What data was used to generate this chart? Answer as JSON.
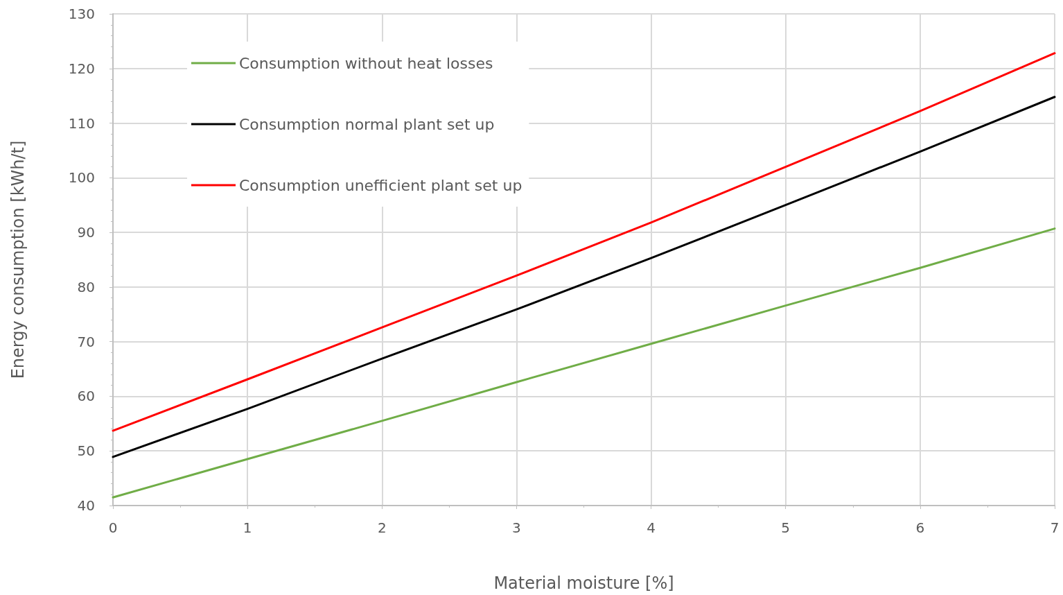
{
  "chart_data": {
    "type": "line",
    "xlabel": "Material moisture [%]",
    "ylabel": "Energy consumption [kWh/t]",
    "x": [
      0,
      1,
      2,
      3,
      4,
      5,
      6,
      7
    ],
    "series": [
      {
        "name": "Consumption without heat losses",
        "color": "#70ad47",
        "values": [
          41.5,
          48.5,
          55.5,
          62.6,
          69.6,
          76.6,
          83.5,
          90.7
        ]
      },
      {
        "name": "Consumption normal plant set up",
        "color": "#000000",
        "values": [
          48.9,
          57.7,
          66.9,
          75.9,
          85.3,
          95.0,
          104.8,
          114.8
        ]
      },
      {
        "name": "Consumption unefficient plant set up",
        "color": "#ff0000",
        "values": [
          53.7,
          63.1,
          72.6,
          82.1,
          91.8,
          102.0,
          112.2,
          122.8
        ]
      }
    ],
    "xlim": [
      0,
      7
    ],
    "xticks": [
      0,
      1,
      2,
      3,
      4,
      5,
      6,
      7
    ],
    "ylim": [
      40,
      130
    ],
    "yticks": [
      40,
      50,
      60,
      70,
      80,
      90,
      100,
      110,
      120,
      130
    ],
    "grid": true,
    "legend": "top left",
    "marker": "none",
    "line_style": "solid"
  }
}
